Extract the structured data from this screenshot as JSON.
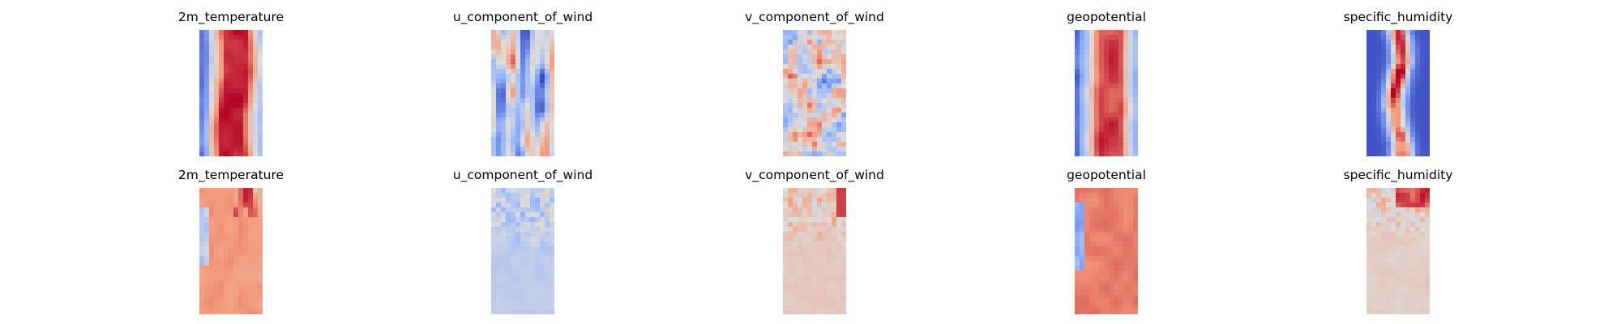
{
  "chart_data": {
    "type": "heatmap",
    "colormap": "coolwarm",
    "colormap_colors": {
      "low": "#3b4cc0",
      "lowmid": "#8db0fe",
      "mid": "#dddddd",
      "highmid": "#f49a7b",
      "high": "#b40426"
    },
    "grid": false,
    "axes_visible": false,
    "layout": {
      "rows": 2,
      "cols": 5
    },
    "panels": [
      {
        "row": 0,
        "col": 0,
        "title": "2m_temperature",
        "pattern": "temp_fields"
      },
      {
        "row": 0,
        "col": 1,
        "title": "u_component_of_wind",
        "pattern": "u_wind_fields"
      },
      {
        "row": 0,
        "col": 2,
        "title": "v_component_of_wind",
        "pattern": "v_wind_fields"
      },
      {
        "row": 0,
        "col": 3,
        "title": "geopotential",
        "pattern": "geo_fields"
      },
      {
        "row": 0,
        "col": 4,
        "title": "specific_humidity",
        "pattern": "humidity_fields"
      },
      {
        "row": 1,
        "col": 0,
        "title": "2m_temperature",
        "pattern": "temp_diff"
      },
      {
        "row": 1,
        "col": 1,
        "title": "u_component_of_wind",
        "pattern": "u_wind_diff"
      },
      {
        "row": 1,
        "col": 2,
        "title": "v_component_of_wind",
        "pattern": "v_wind_diff"
      },
      {
        "row": 1,
        "col": 3,
        "title": "geopotential",
        "pattern": "geo_diff"
      },
      {
        "row": 1,
        "col": 4,
        "title": "specific_humidity",
        "pattern": "humidity_diff"
      }
    ]
  }
}
